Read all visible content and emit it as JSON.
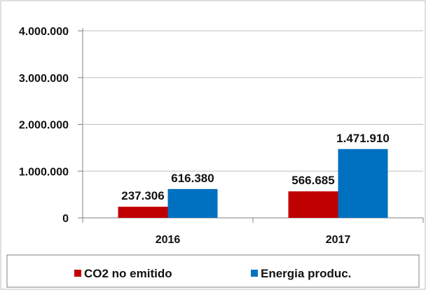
{
  "chart_data": {
    "type": "bar",
    "categories": [
      "2016",
      "2017"
    ],
    "series": [
      {
        "name": "CO2 no emitido",
        "color": "#c00000",
        "values": [
          237306,
          566685
        ],
        "labels": [
          "237.306",
          "566.685"
        ]
      },
      {
        "name": "Energia produc.",
        "color": "#0070c0",
        "values": [
          616380,
          1471910
        ],
        "labels": [
          "616.380",
          "1.471.910"
        ]
      }
    ],
    "yticks": [
      0,
      1000000,
      2000000,
      3000000,
      4000000
    ],
    "ytick_labels": [
      "0",
      "1.000.000",
      "2.000.000",
      "3.000.000",
      "4.000.000"
    ],
    "ylim": [
      0,
      4000000
    ],
    "grid": true,
    "legend": "bottom",
    "title": "",
    "xlabel": "",
    "ylabel": ""
  }
}
